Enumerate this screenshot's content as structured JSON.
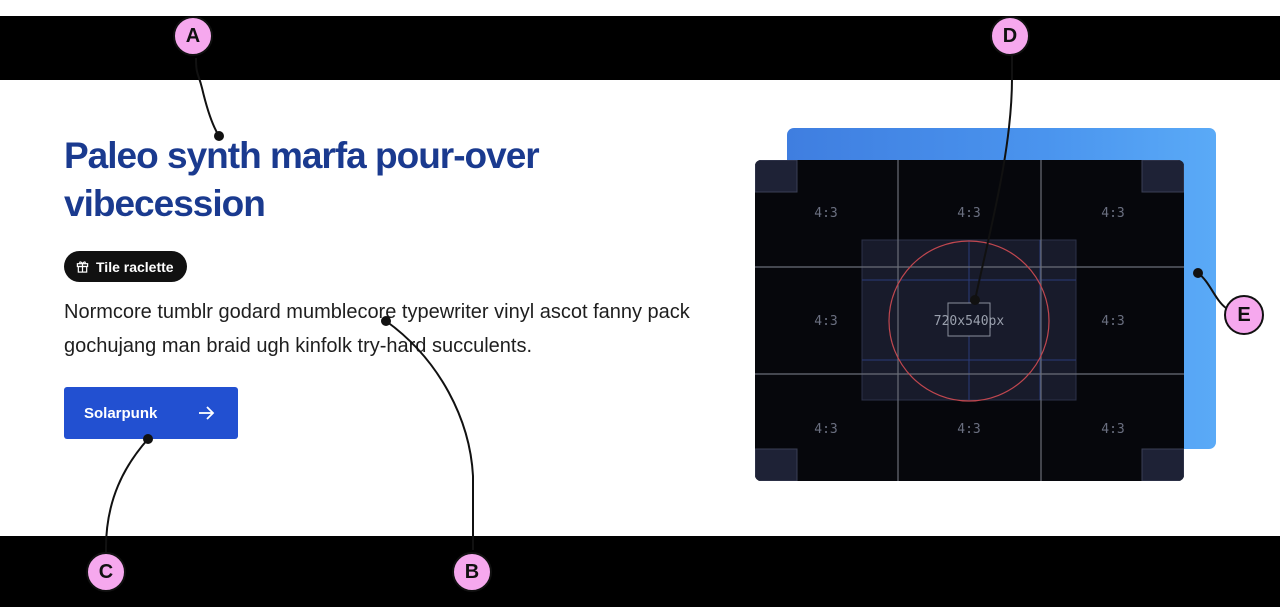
{
  "hero": {
    "heading": "Paleo synth marfa pour-over vibecession",
    "badge": {
      "label": "Tile raclette",
      "icon": "gift-icon"
    },
    "description": "Normcore tumblr godard mumblecore typewriter vinyl ascot fanny pack gochujang man braid ugh kinfolk try-hard succulents.",
    "cta": {
      "label": "Solarpunk",
      "icon": "arrow-right-icon"
    }
  },
  "preview": {
    "ratio_labels": [
      "4:3",
      "4:3",
      "4:3",
      "4:3",
      "4:3",
      "4:3",
      "4:3",
      "4:3"
    ],
    "size_label": "720x540px",
    "colors": {
      "backplate_start": "#3f7ee0",
      "backplate_end": "#5aaaf7",
      "canvas": "#06070c",
      "circle": "#c0474f"
    }
  },
  "callouts": {
    "a": "A",
    "b": "B",
    "c": "C",
    "d": "D",
    "e": "E"
  },
  "colors": {
    "heading": "#1a3a8f",
    "cta": "#2250d1",
    "marker": "#f6a8ee",
    "bars": "#000000"
  }
}
